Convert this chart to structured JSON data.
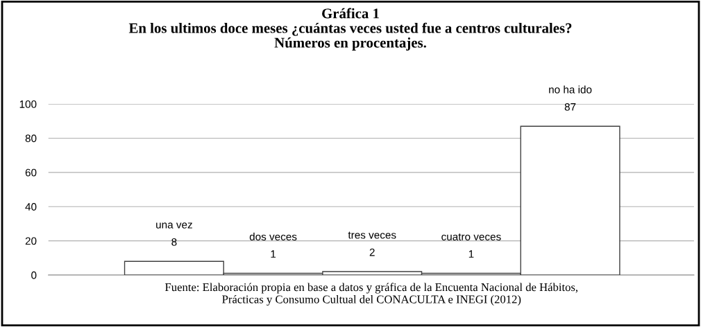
{
  "chart_data": {
    "type": "bar",
    "title": "Gráfica 1\nEn los ultimos doce meses ¿cuántas veces usted fue a centros culturales?\nNúmeros en procentajes.",
    "categories": [
      "una vez",
      "dos veces",
      "tres veces",
      "cuatro veces",
      "no ha ido"
    ],
    "values": [
      8,
      1,
      2,
      1,
      87
    ],
    "color": "#ffffff",
    "ylim": [
      0,
      100
    ],
    "yticks": [
      0,
      20,
      40,
      60,
      80,
      100
    ],
    "grid": "y",
    "data_labels": true,
    "tick_labels": "y",
    "annotations": [
      "Fuente: Elaboración propia en base a datos y gráfica de la Encuenta Nacional de Hábitos,\nPrácticas y Consumo Cultual del CONACULTA e INEGI (2012)"
    ]
  }
}
